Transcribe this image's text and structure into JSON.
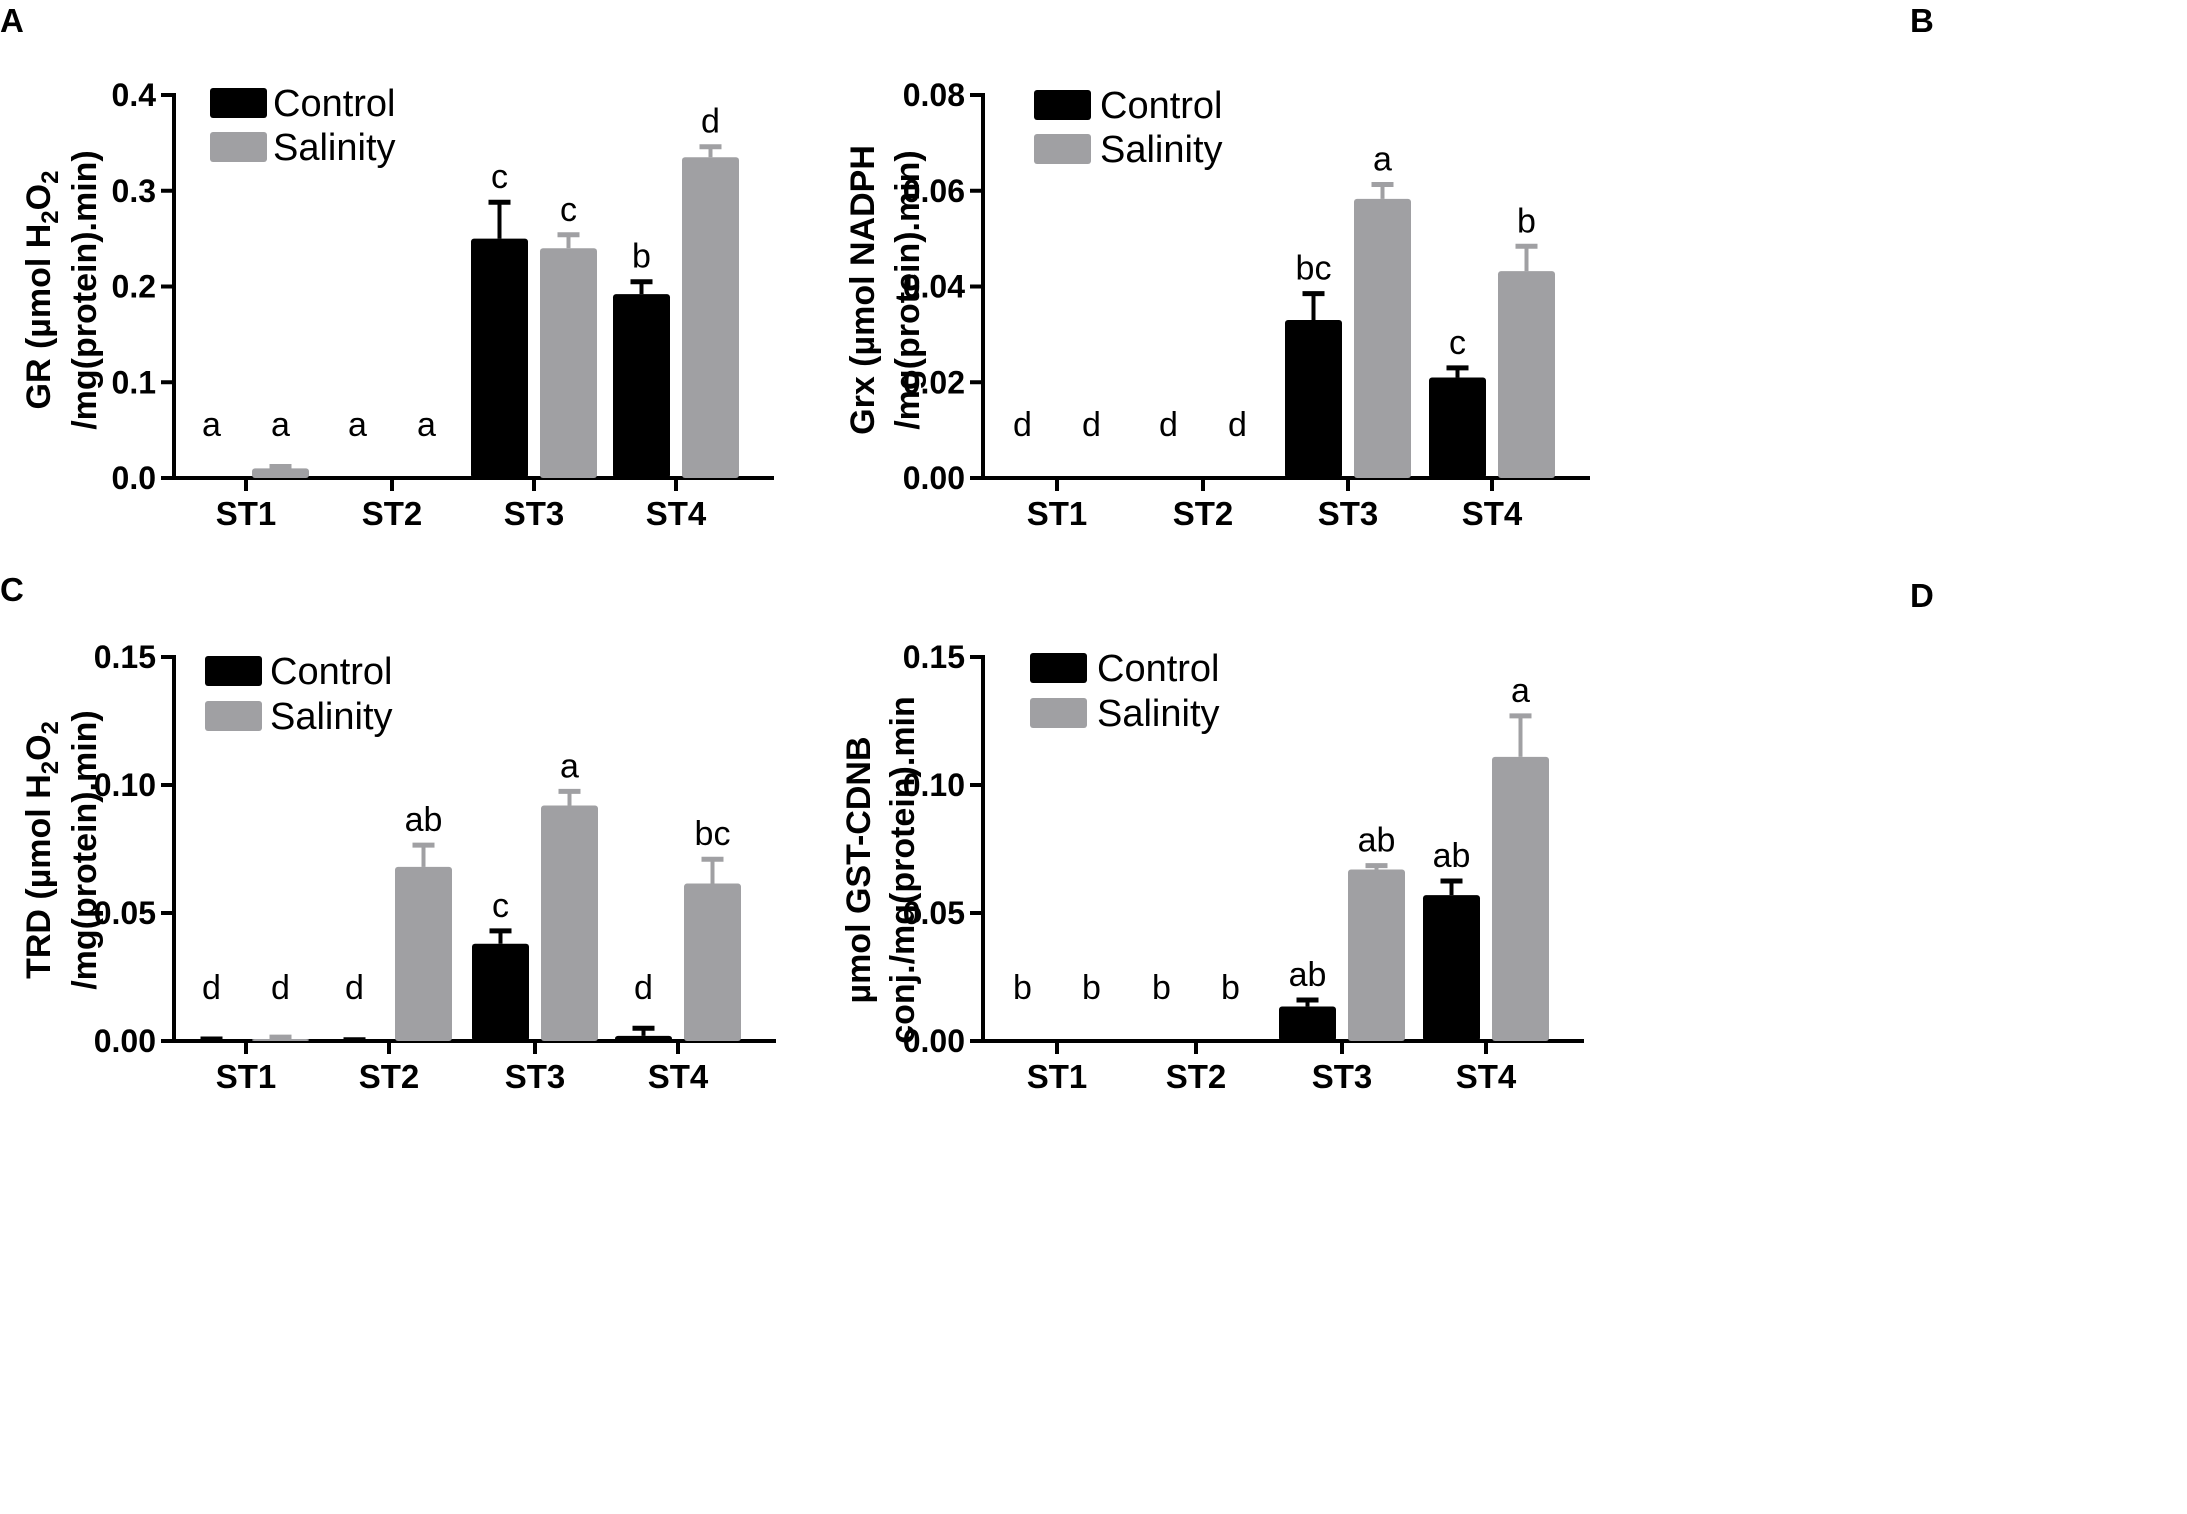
{
  "colors": {
    "control": "#000000",
    "salinity": "#a0a0a3",
    "axis": "#000000"
  },
  "chart_data": [
    {
      "type": "bar",
      "panel_label": "A",
      "categories": [
        "ST1",
        "ST2",
        "ST3",
        "ST4"
      ],
      "ylabel_line1": "GR (µmol H",
      "ylabel_sub1": "2",
      "ylabel_mid": "O",
      "ylabel_sub2": "2",
      "ylabel_line2": "/mg(protein).min)",
      "ylim": [
        0,
        0.4
      ],
      "yticks": [
        0.0,
        0.1,
        0.2,
        0.3,
        0.4
      ],
      "ytick_labels": [
        "0.0",
        "0.1",
        "0.2",
        "0.3",
        "0.4"
      ],
      "legend": [
        "Control",
        "Salinity"
      ],
      "series": [
        {
          "name": "Control",
          "values": [
            0,
            0,
            0.25,
            0.192
          ],
          "errors": [
            0,
            0,
            0.038,
            0.013
          ],
          "sig": [
            "a",
            "a",
            "c",
            "b"
          ]
        },
        {
          "name": "Salinity",
          "values": [
            0.01,
            0,
            0.24,
            0.335
          ],
          "errors": [
            0.002,
            0,
            0.014,
            0.011
          ],
          "sig": [
            "a",
            "a",
            "c",
            "d"
          ]
        }
      ]
    },
    {
      "type": "bar",
      "panel_label": "B",
      "categories": [
        "ST1",
        "ST2",
        "ST3",
        "ST4"
      ],
      "ylabel_line1": "Grx (µmol NADPH",
      "ylabel_line2": "/mg(protein).min)",
      "ylim": [
        0,
        0.08
      ],
      "yticks": [
        0,
        0.02,
        0.04,
        0.06,
        0.08
      ],
      "ytick_labels": [
        "0.00",
        "0.02",
        "0.04",
        "0.06",
        "0.08"
      ],
      "legend": [
        "Control",
        "Salinity"
      ],
      "series": [
        {
          "name": "Control",
          "values": [
            0,
            0,
            0.033,
            0.021
          ],
          "errors": [
            0,
            0,
            0.0055,
            0.002
          ],
          "sig": [
            "d",
            "d",
            "bc",
            "c"
          ]
        },
        {
          "name": "Salinity",
          "values": [
            0,
            0,
            0.0583,
            0.0432
          ],
          "errors": [
            0,
            0,
            0.003,
            0.0052
          ],
          "sig": [
            "d",
            "d",
            "a",
            "b"
          ]
        }
      ]
    },
    {
      "type": "bar",
      "panel_label": "C",
      "categories": [
        "ST1",
        "ST2",
        "ST3",
        "ST4"
      ],
      "ylabel_line1": "TRD (µmol H",
      "ylabel_sub1": "2",
      "ylabel_mid": "O",
      "ylabel_sub2": "2",
      "ylabel_line2": "/mg(protein).min)",
      "ylim": [
        0,
        0.15
      ],
      "yticks": [
        0,
        0.05,
        0.1,
        0.15
      ],
      "ytick_labels": [
        "0.00",
        "0.05",
        "0.10",
        "0.15"
      ],
      "legend": [
        "Control",
        "Salinity"
      ],
      "series": [
        {
          "name": "Control",
          "values": [
            0.0005,
            0.0003,
            0.038,
            0.002
          ],
          "errors": [
            0.0003,
            0.0002,
            0.005,
            0.003
          ],
          "sig": [
            "d",
            "d",
            "c",
            "d"
          ]
        },
        {
          "name": "Salinity",
          "values": [
            0.0008,
            0.068,
            0.092,
            0.0615
          ],
          "errors": [
            0.0007,
            0.0085,
            0.0055,
            0.0095
          ],
          "sig": [
            "d",
            "ab",
            "a",
            "bc"
          ]
        }
      ]
    },
    {
      "type": "bar",
      "panel_label": "D",
      "categories": [
        "ST1",
        "ST2",
        "ST3",
        "ST4"
      ],
      "ylabel_line1": "µmol GST-CDNB",
      "ylabel_line2": "conj./mg(protein).min",
      "ylim": [
        0,
        0.15
      ],
      "yticks": [
        0,
        0.05,
        0.1,
        0.15
      ],
      "ytick_labels": [
        "0.00",
        "0.05",
        "0.10",
        "0.15"
      ],
      "legend": [
        "Control",
        "Salinity"
      ],
      "series": [
        {
          "name": "Control",
          "values": [
            0,
            0,
            0.0135,
            0.057
          ],
          "errors": [
            0,
            0,
            0.0025,
            0.0055
          ],
          "sig": [
            "b",
            "b",
            "ab",
            "ab"
          ]
        },
        {
          "name": "Salinity",
          "values": [
            0,
            0,
            0.067,
            0.111
          ],
          "errors": [
            0,
            0,
            0.0015,
            0.016
          ],
          "sig": [
            "b",
            "b",
            "ab",
            "a"
          ]
        }
      ]
    }
  ]
}
